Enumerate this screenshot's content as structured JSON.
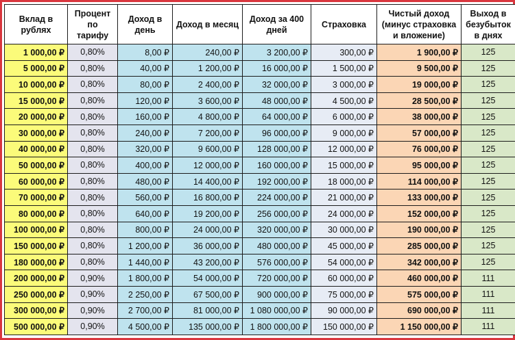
{
  "headers": [
    "Вклад в рублях",
    "Процент по тарифу",
    "Доход в день",
    "Доход в месяц",
    "Доход за 400 дней",
    "Страховка",
    "Чистый доход (минус страховка и вложение)",
    "Выход в безубыток в днях"
  ],
  "rows": [
    [
      "1 000,00 ₽",
      "0,80%",
      "8,00 ₽",
      "240,00 ₽",
      "3 200,00 ₽",
      "300,00 ₽",
      "1 900,00 ₽",
      "125"
    ],
    [
      "5 000,00 ₽",
      "0,80%",
      "40,00 ₽",
      "1 200,00 ₽",
      "16 000,00 ₽",
      "1 500,00 ₽",
      "9 500,00 ₽",
      "125"
    ],
    [
      "10 000,00 ₽",
      "0,80%",
      "80,00 ₽",
      "2 400,00 ₽",
      "32 000,00 ₽",
      "3 000,00 ₽",
      "19 000,00 ₽",
      "125"
    ],
    [
      "15 000,00 ₽",
      "0,80%",
      "120,00 ₽",
      "3 600,00 ₽",
      "48 000,00 ₽",
      "4 500,00 ₽",
      "28 500,00 ₽",
      "125"
    ],
    [
      "20 000,00 ₽",
      "0,80%",
      "160,00 ₽",
      "4 800,00 ₽",
      "64 000,00 ₽",
      "6 000,00 ₽",
      "38 000,00 ₽",
      "125"
    ],
    [
      "30 000,00 ₽",
      "0,80%",
      "240,00 ₽",
      "7 200,00 ₽",
      "96 000,00 ₽",
      "9 000,00 ₽",
      "57 000,00 ₽",
      "125"
    ],
    [
      "40 000,00 ₽",
      "0,80%",
      "320,00 ₽",
      "9 600,00 ₽",
      "128 000,00 ₽",
      "12 000,00 ₽",
      "76 000,00 ₽",
      "125"
    ],
    [
      "50 000,00 ₽",
      "0,80%",
      "400,00 ₽",
      "12 000,00 ₽",
      "160 000,00 ₽",
      "15 000,00 ₽",
      "95 000,00 ₽",
      "125"
    ],
    [
      "60 000,00 ₽",
      "0,80%",
      "480,00 ₽",
      "14 400,00 ₽",
      "192 000,00 ₽",
      "18 000,00 ₽",
      "114 000,00 ₽",
      "125"
    ],
    [
      "70 000,00 ₽",
      "0,80%",
      "560,00 ₽",
      "16 800,00 ₽",
      "224 000,00 ₽",
      "21 000,00 ₽",
      "133 000,00 ₽",
      "125"
    ],
    [
      "80 000,00 ₽",
      "0,80%",
      "640,00 ₽",
      "19 200,00 ₽",
      "256 000,00 ₽",
      "24 000,00 ₽",
      "152 000,00 ₽",
      "125"
    ],
    [
      "100 000,00 ₽",
      "0,80%",
      "800,00 ₽",
      "24 000,00 ₽",
      "320 000,00 ₽",
      "30 000,00 ₽",
      "190 000,00 ₽",
      "125"
    ],
    [
      "150 000,00 ₽",
      "0,80%",
      "1 200,00 ₽",
      "36 000,00 ₽",
      "480 000,00 ₽",
      "45 000,00 ₽",
      "285 000,00 ₽",
      "125"
    ],
    [
      "180 000,00 ₽",
      "0,80%",
      "1 440,00 ₽",
      "43 200,00 ₽",
      "576 000,00 ₽",
      "54 000,00 ₽",
      "342 000,00 ₽",
      "125"
    ],
    [
      "200 000,00 ₽",
      "0,90%",
      "1 800,00 ₽",
      "54 000,00 ₽",
      "720 000,00 ₽",
      "60 000,00 ₽",
      "460 000,00 ₽",
      "111"
    ],
    [
      "250 000,00 ₽",
      "0,90%",
      "2 250,00 ₽",
      "67 500,00 ₽",
      "900 000,00 ₽",
      "75 000,00 ₽",
      "575 000,00 ₽",
      "111"
    ],
    [
      "300 000,00 ₽",
      "0,90%",
      "2 700,00 ₽",
      "81 000,00 ₽",
      "1 080 000,00 ₽",
      "90 000,00 ₽",
      "690 000,00 ₽",
      "111"
    ],
    [
      "500 000,00 ₽",
      "0,90%",
      "4 500,00 ₽",
      "135 000,00 ₽",
      "1 800 000,00 ₽",
      "150 000,00 ₽",
      "1 150 000,00 ₽",
      "111"
    ]
  ],
  "colors": {
    "border_frame": "#d9363e",
    "deposit": "#fbfb7a",
    "percent": "#e4e4ee",
    "income": "#bfe3ee",
    "insurance": "#e7ecf5",
    "net": "#fbd6b5",
    "breakeven": "#d9e8c8"
  }
}
